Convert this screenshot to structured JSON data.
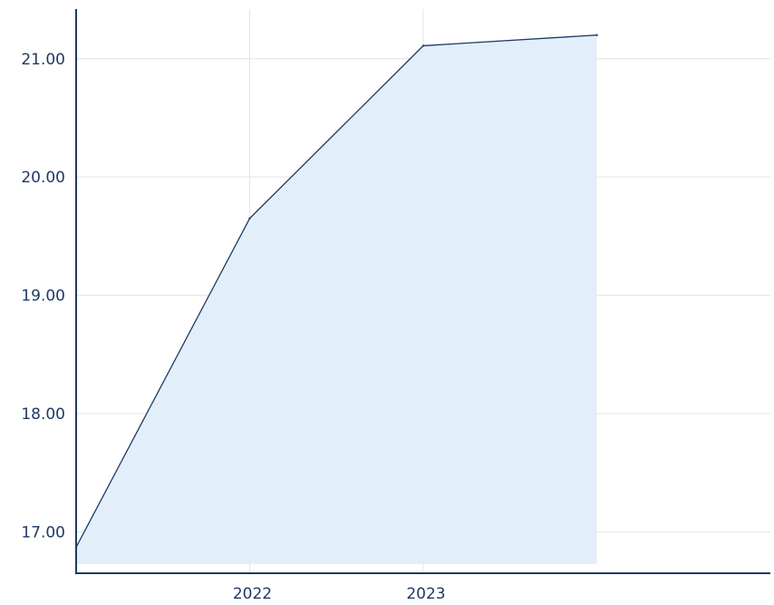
{
  "chart_data": {
    "type": "area",
    "title": "",
    "xlabel": "",
    "ylabel": "",
    "x_ticks": [
      {
        "label": "2022",
        "value": 2022.0
      },
      {
        "label": "2023",
        "value": 2023.0
      }
    ],
    "y_ticks": [
      "17.00",
      "18.00",
      "19.00",
      "20.00",
      "21.00"
    ],
    "xlim": [
      2021.0,
      2025.0
    ],
    "ylim": [
      16.65,
      21.42
    ],
    "area_baseline": 16.73,
    "grid": true,
    "legend": "none",
    "series": [
      {
        "points": [
          {
            "x": 2021.0,
            "y": 16.87
          },
          {
            "x": 2022.0,
            "y": 19.65
          },
          {
            "x": 2023.0,
            "y": 21.11
          },
          {
            "x": 2024.0,
            "y": 21.2
          }
        ]
      }
    ],
    "colors": {
      "line": "#1f3a63",
      "fill": "#e2eef9",
      "grid": "#e3e3e3",
      "axis": "#1f3a63"
    }
  }
}
